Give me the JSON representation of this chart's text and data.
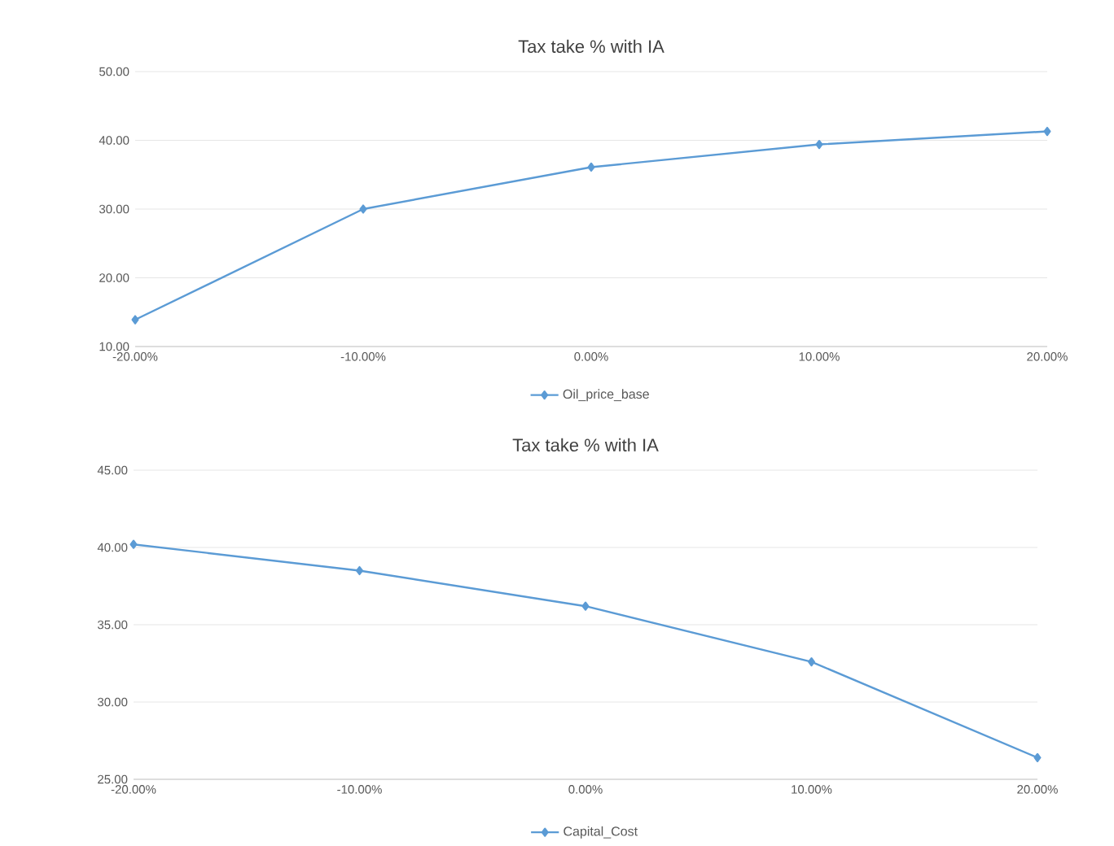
{
  "chart_data": [
    {
      "type": "line",
      "title": "Tax take % with IA",
      "categories": [
        "-20.00%",
        "-10.00%",
        "0.00%",
        "10.00%",
        "20.00%"
      ],
      "series": [
        {
          "name": "Oil_price_base",
          "color": "#5b9bd5",
          "values": [
            13.9,
            30.0,
            36.1,
            39.4,
            41.3
          ]
        }
      ],
      "ylim": [
        10,
        50
      ],
      "yticks": [
        {
          "value": 10,
          "label": "10.00"
        },
        {
          "value": 20,
          "label": "20.00"
        },
        {
          "value": 30,
          "label": "30.00"
        },
        {
          "value": 40,
          "label": "40.00"
        },
        {
          "value": 50,
          "label": "50.00"
        }
      ],
      "grid": "y",
      "legend": "bottom",
      "marker": "diamond",
      "line_style": "solid"
    },
    {
      "type": "line",
      "title": "Tax take % with IA",
      "categories": [
        "-20.00%",
        "-10.00%",
        "0.00%",
        "10.00%",
        "20.00%"
      ],
      "series": [
        {
          "name": "Capital_Cost",
          "color": "#5b9bd5",
          "values": [
            40.2,
            38.5,
            36.2,
            32.6,
            26.4
          ]
        }
      ],
      "ylim": [
        25,
        45
      ],
      "yticks": [
        {
          "value": 25,
          "label": "25.00"
        },
        {
          "value": 30,
          "label": "30.00"
        },
        {
          "value": 35,
          "label": "35.00"
        },
        {
          "value": 40,
          "label": "40.00"
        },
        {
          "value": 45,
          "label": "45.00"
        }
      ],
      "grid": "y",
      "legend": "bottom",
      "marker": "diamond",
      "line_style": "solid"
    }
  ]
}
